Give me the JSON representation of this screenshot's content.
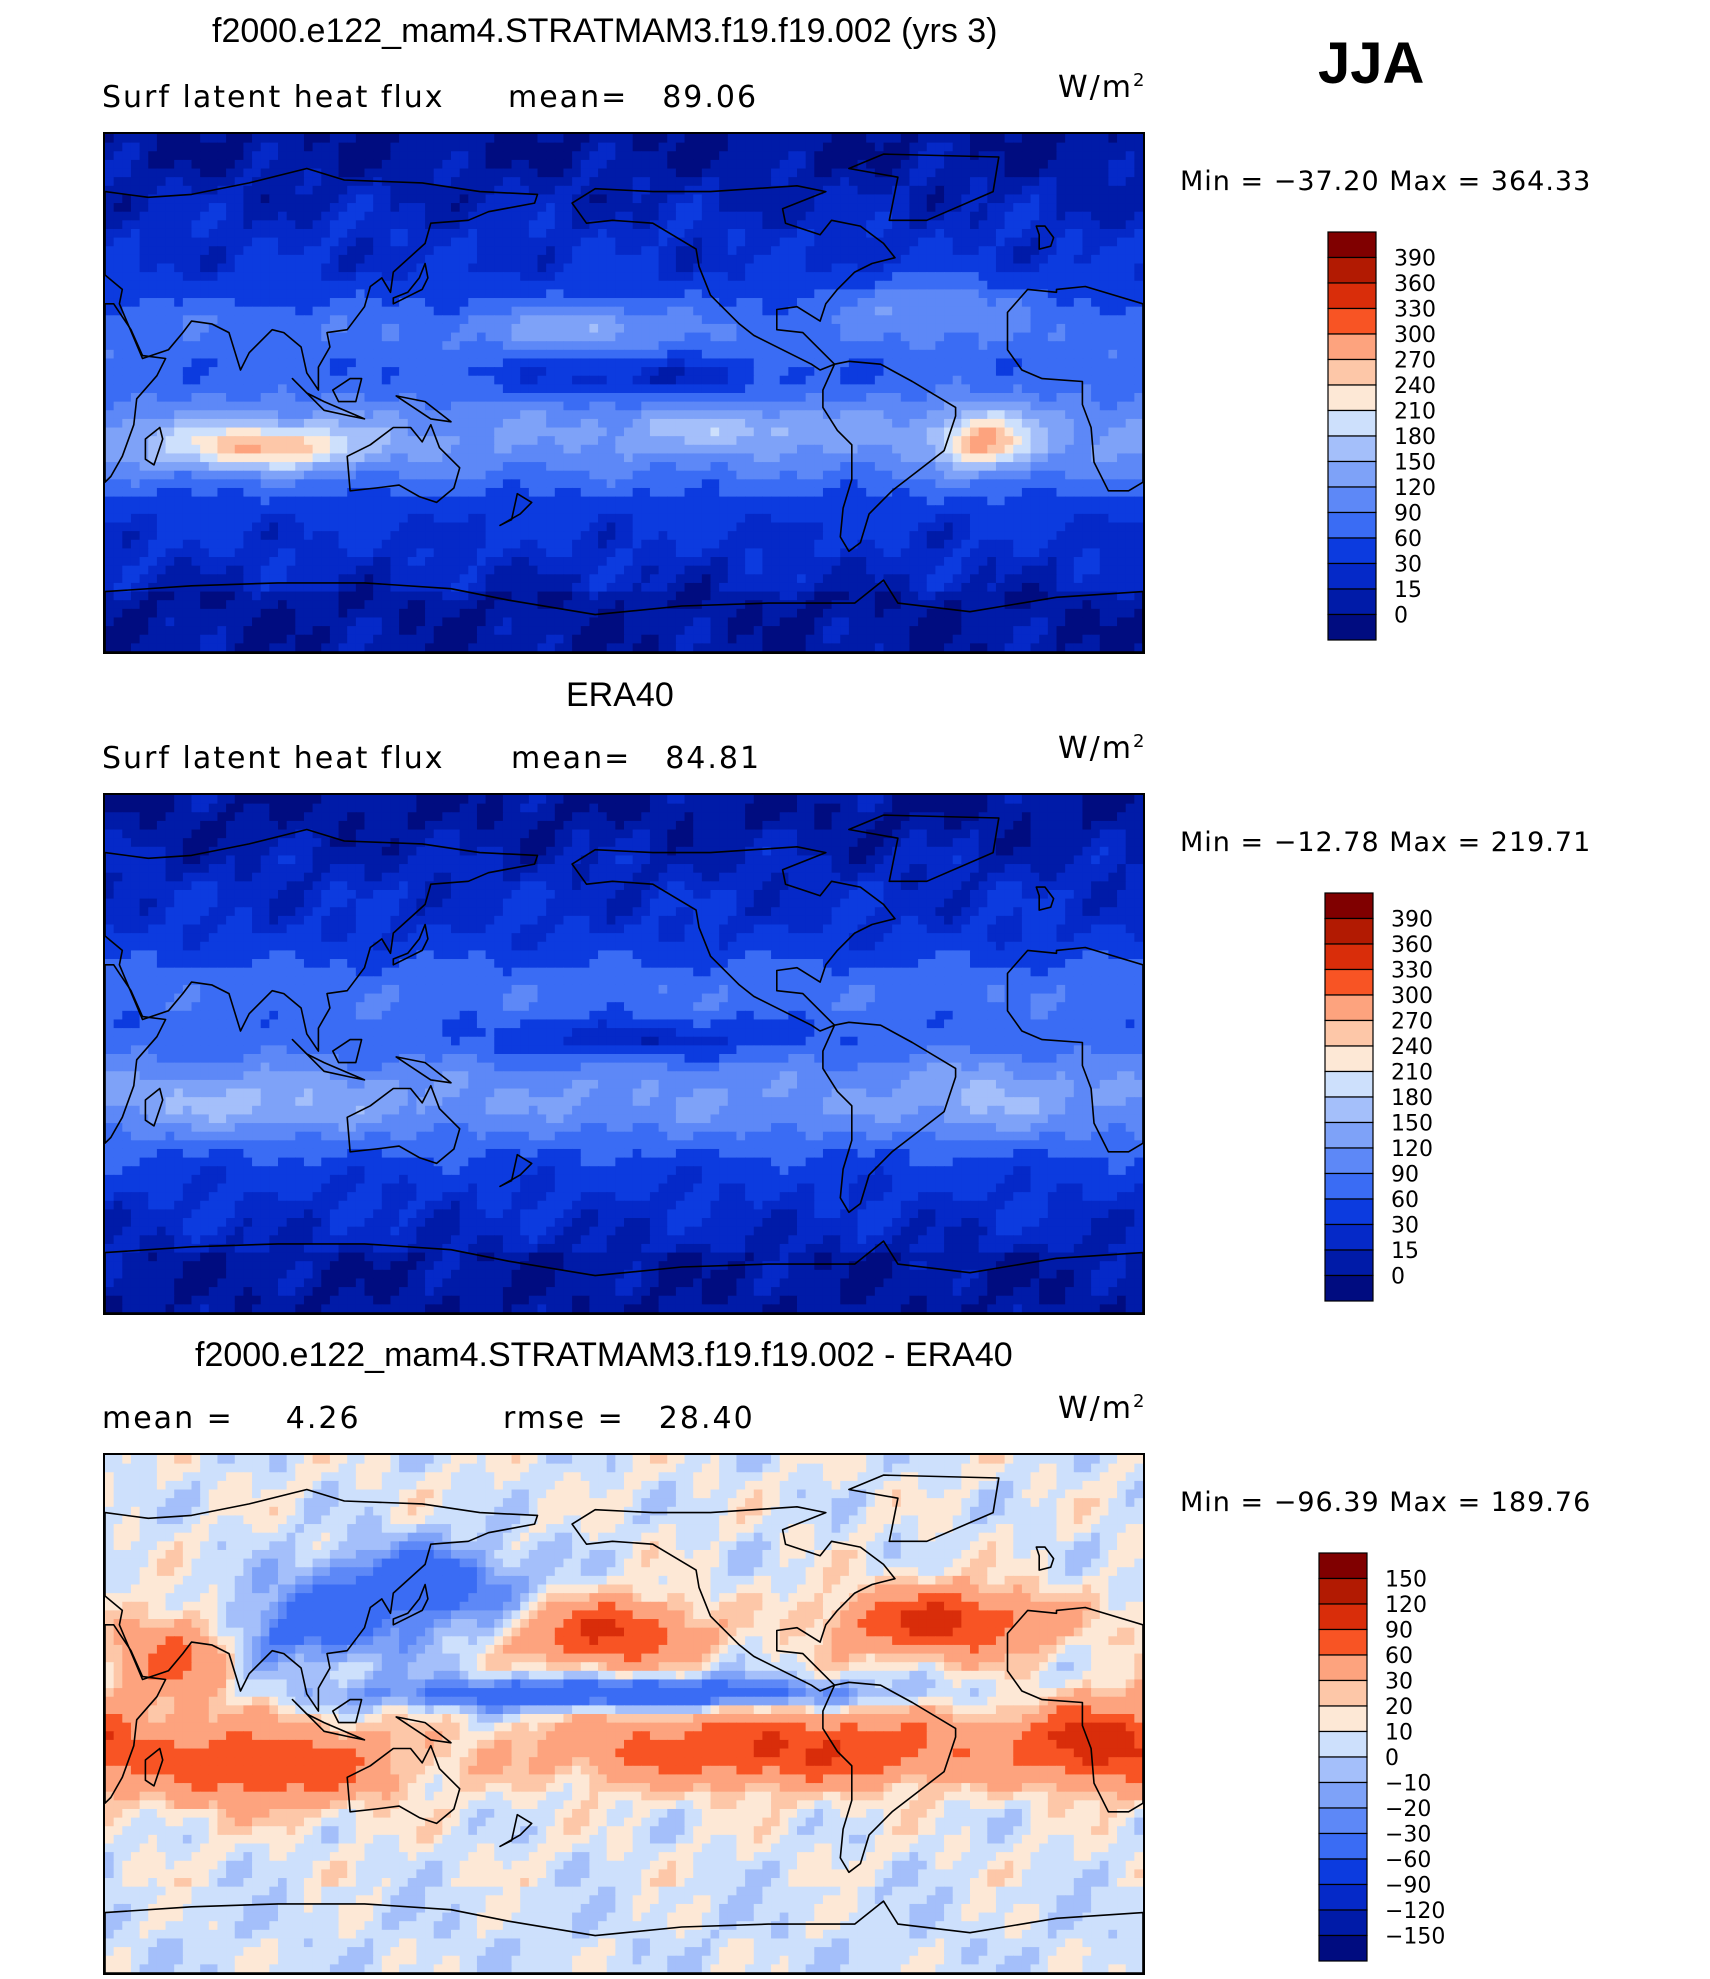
{
  "season": "JJA",
  "colors": {
    "abs_scale": [
      "#000c80",
      "#001ba8",
      "#0529c8",
      "#0c3bdf",
      "#1f55ef",
      "#3a6cf4",
      "#5d88f7",
      "#7ea2f8",
      "#a4bffa",
      "#cde0fc",
      "#fde8d6",
      "#fdc7a8",
      "#fda37e",
      "#fc7c50",
      "#f85424",
      "#d92d0a",
      "#b21a02",
      "#800000"
    ],
    "diff_scale": [
      "#000c80",
      "#001ba8",
      "#0529c8",
      "#0c3bdf",
      "#1f55ef",
      "#3a6cf4",
      "#5d88f7",
      "#7ea2f8",
      "#a4bffa",
      "#cde0fc",
      "#fde8d6",
      "#fdc7a8",
      "#fda37e",
      "#fc7c50",
      "#f85424",
      "#d92d0a",
      "#b21a02",
      "#800000"
    ]
  },
  "panels": [
    {
      "title": "f2000.e122_mam4.STRATMAM3.f19.f19.002 (yrs 3)",
      "left_label": "Surf latent heat flux",
      "mid_label": "mean=",
      "mid_value": "89.06",
      "units": "W/m",
      "units_sup": "2",
      "minmax": "Min = −37.20 Max = 364.33",
      "colorbar_labels": [
        "390",
        "360",
        "330",
        "300",
        "270",
        "240",
        "210",
        "180",
        "150",
        "120",
        "90",
        "60",
        "30",
        "15",
        "0"
      ],
      "field": "model"
    },
    {
      "title": "ERA40",
      "left_label": "Surf latent heat flux",
      "mid_label": "mean=",
      "mid_value": "84.81",
      "units": "W/m",
      "units_sup": "2",
      "minmax": "Min = −12.78 Max = 219.71",
      "colorbar_labels": [
        "390",
        "360",
        "330",
        "300",
        "270",
        "240",
        "210",
        "180",
        "150",
        "120",
        "90",
        "60",
        "30",
        "15",
        "0"
      ],
      "field": "obs"
    },
    {
      "title": "f2000.e122_mam4.STRATMAM3.f19.f19.002 - ERA40",
      "left_label": "mean =",
      "left_value": "4.26",
      "mid_label": "rmse =",
      "mid_value": "28.40",
      "units": "W/m",
      "units_sup": "2",
      "minmax": "Min = −96.39 Max = 189.76",
      "colorbar_labels": [
        "150",
        "120",
        "90",
        "60",
        "30",
        "20",
        "10",
        "0",
        "−10",
        "−20",
        "−30",
        "−60",
        "−90",
        "−120",
        "−150"
      ],
      "field": "diff"
    }
  ]
}
